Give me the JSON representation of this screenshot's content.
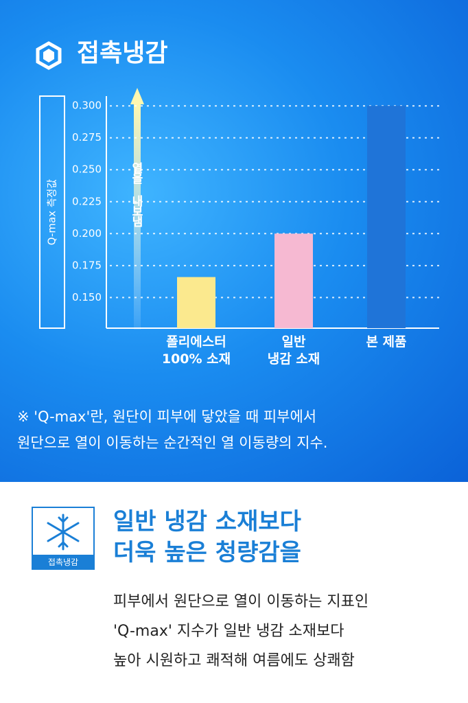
{
  "chart_data": {
    "type": "bar",
    "title": "접촉냉감",
    "y_label": "Q-max 측정값",
    "annotation": "열을 내보냄",
    "categories": [
      "폴리에스터\n100% 소재",
      "일반\n냉감 소재",
      "본 제품"
    ],
    "values": [
      0.166,
      0.2,
      0.3
    ],
    "colors": [
      "#fbe98e",
      "#f6b9d2",
      "#1f74d8"
    ],
    "ylim": [
      0.126,
      0.313
    ],
    "yticks": [
      {
        "value": 0.15,
        "label": "0.150"
      },
      {
        "value": 0.175,
        "label": "0.175"
      },
      {
        "value": 0.2,
        "label": "0.200"
      },
      {
        "value": 0.225,
        "label": "0.225"
      },
      {
        "value": 0.25,
        "label": "0.250"
      },
      {
        "value": 0.275,
        "label": "0.275"
      },
      {
        "value": 0.3,
        "label": "0.300"
      }
    ],
    "grid": true,
    "note": "※ 'Q-max'란, 원단이 피부에 닿았을 때 피부에서\n원단으로 열이 이동하는 순간적인 열 이동량의 지수."
  },
  "feature": {
    "badge": "접촉냉감",
    "heading": "일반 냉감 소재보다\n더욱 높은 청량감을",
    "body": "피부에서 원단으로 열이 이동하는 지표인\n'Q-max' 지수가 일반 냉감 소재보다\n높아 시원하고 쾌적해 여름에도 상쾌함"
  }
}
